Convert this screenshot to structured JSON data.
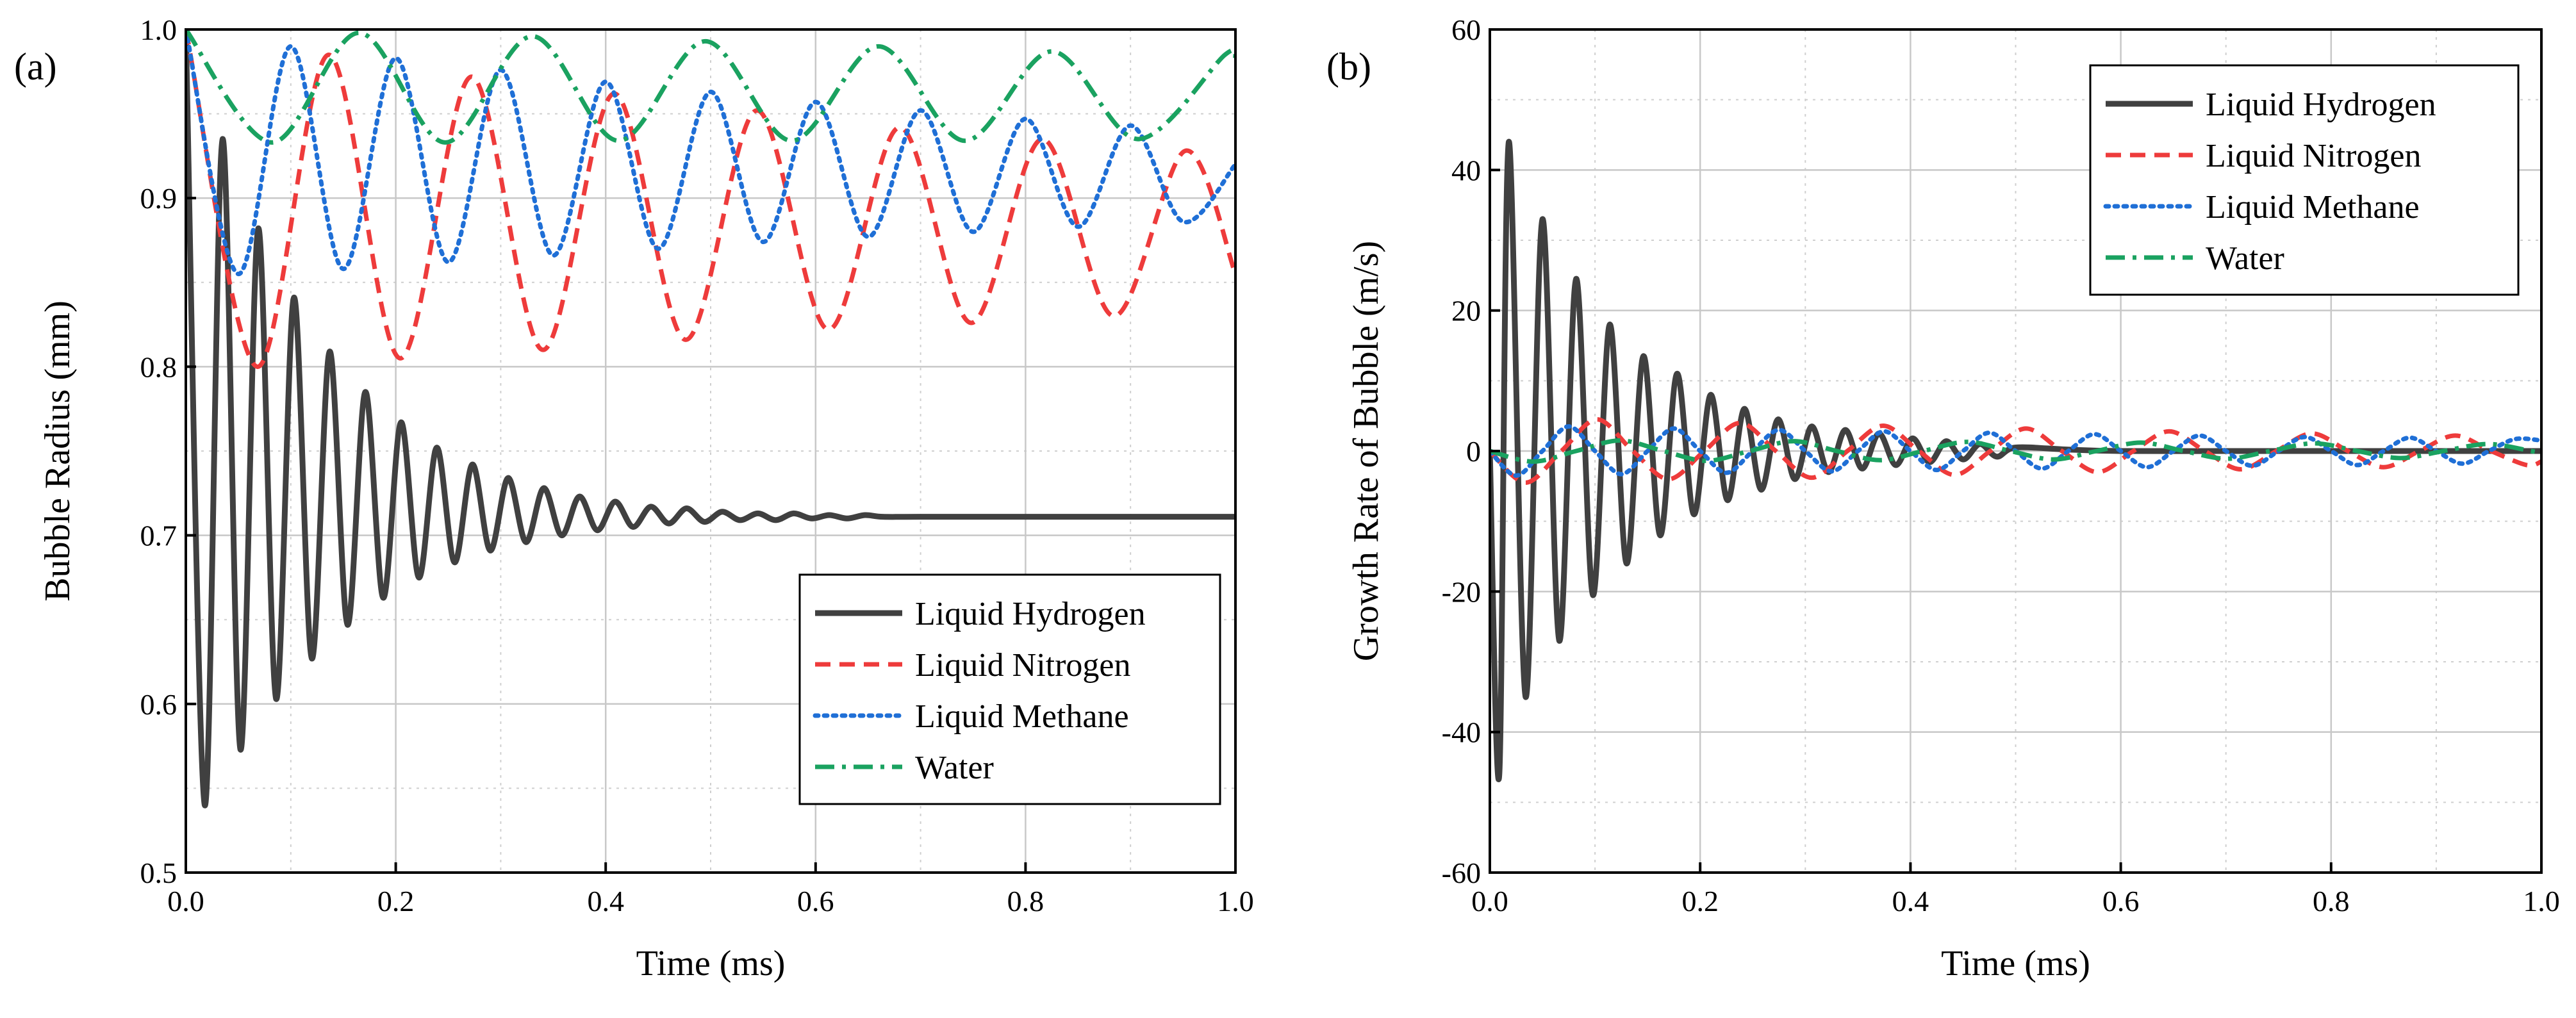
{
  "chart_data": [
    {
      "type": "line",
      "panel_label": "(a)",
      "xlabel": "Time (ms)",
      "ylabel": "Bubble Radius (mm)",
      "xlim": [
        0.0,
        1.0
      ],
      "ylim": [
        0.5,
        1.0
      ],
      "xticks": [
        "0.0",
        "0.2",
        "0.4",
        "0.6",
        "0.8",
        "1.0"
      ],
      "yticks": [
        "0.5",
        "0.6",
        "0.7",
        "0.8",
        "0.9",
        "1.0"
      ],
      "grid": true,
      "legend_position": "bottom-right",
      "series": [
        {
          "name": "Liquid Hydrogen",
          "color": "#404040",
          "dash": "solid",
          "x": [
            0,
            0.018,
            0.035,
            0.052,
            0.069,
            0.086,
            0.103,
            0.12,
            0.137,
            0.154,
            0.171,
            0.188,
            0.205,
            0.222,
            0.239,
            0.256,
            0.273,
            0.29,
            0.307,
            0.324,
            0.341,
            0.358,
            0.375,
            0.392,
            0.409,
            0.426,
            0.443,
            0.46,
            0.477,
            0.494,
            0.511,
            0.528,
            0.545,
            0.562,
            0.579,
            0.596,
            0.613,
            0.63,
            0.647,
            0.664,
            0.7,
            0.8,
            0.9,
            1.0
          ],
          "values": [
            1.0,
            0.54,
            0.935,
            0.573,
            0.882,
            0.603,
            0.841,
            0.627,
            0.809,
            0.647,
            0.785,
            0.663,
            0.767,
            0.675,
            0.752,
            0.684,
            0.742,
            0.691,
            0.734,
            0.696,
            0.728,
            0.7,
            0.723,
            0.703,
            0.72,
            0.705,
            0.717,
            0.707,
            0.716,
            0.708,
            0.714,
            0.709,
            0.713,
            0.709,
            0.713,
            0.71,
            0.712,
            0.71,
            0.712,
            0.711,
            0.711,
            0.711,
            0.711,
            0.711
          ]
        },
        {
          "name": "Liquid Nitrogen",
          "color": "#ee3b3b",
          "dash": "dashed",
          "x": [
            0,
            0.068,
            0.136,
            0.204,
            0.272,
            0.34,
            0.408,
            0.476,
            0.544,
            0.612,
            0.68,
            0.748,
            0.816,
            0.884,
            0.952,
            1.0
          ],
          "values": [
            1.0,
            0.8,
            0.985,
            0.805,
            0.972,
            0.81,
            0.962,
            0.816,
            0.952,
            0.822,
            0.942,
            0.826,
            0.935,
            0.83,
            0.928,
            0.855
          ]
        },
        {
          "name": "Liquid Methane",
          "color": "#1f6fd6",
          "dash": "dotted",
          "x": [
            0,
            0.05,
            0.1,
            0.15,
            0.2,
            0.25,
            0.3,
            0.35,
            0.4,
            0.45,
            0.5,
            0.55,
            0.6,
            0.65,
            0.7,
            0.75,
            0.8,
            0.85,
            0.9,
            0.95,
            1.0
          ],
          "values": [
            1.0,
            0.855,
            0.99,
            0.858,
            0.983,
            0.862,
            0.976,
            0.866,
            0.969,
            0.87,
            0.963,
            0.874,
            0.957,
            0.877,
            0.952,
            0.88,
            0.947,
            0.883,
            0.943,
            0.886,
            0.92
          ]
        },
        {
          "name": "Water",
          "color": "#1aa260",
          "dash": "dashdot",
          "x": [
            0,
            0.082,
            0.165,
            0.247,
            0.33,
            0.412,
            0.495,
            0.577,
            0.66,
            0.742,
            0.825,
            0.907,
            0.99,
            1.0
          ],
          "values": [
            1.0,
            0.933,
            0.998,
            0.933,
            0.996,
            0.934,
            0.993,
            0.934,
            0.99,
            0.934,
            0.987,
            0.935,
            0.985,
            0.982
          ]
        }
      ]
    },
    {
      "type": "line",
      "panel_label": "(b)",
      "xlabel": "Time (ms)",
      "ylabel": "Growth Rate of Bubble (m/s)",
      "xlim": [
        0.0,
        1.0
      ],
      "ylim": [
        -60,
        60
      ],
      "xticks": [
        "0.0",
        "0.2",
        "0.4",
        "0.6",
        "0.8",
        "1.0"
      ],
      "yticks": [
        "-60",
        "-40",
        "-20",
        "0",
        "20",
        "40",
        "60"
      ],
      "grid": true,
      "legend_position": "top-right",
      "series": [
        {
          "name": "Liquid Hydrogen",
          "color": "#404040",
          "dash": "solid",
          "x": [
            0,
            0.009,
            0.018,
            0.034,
            0.05,
            0.066,
            0.082,
            0.098,
            0.114,
            0.13,
            0.146,
            0.162,
            0.178,
            0.194,
            0.21,
            0.226,
            0.242,
            0.258,
            0.274,
            0.29,
            0.306,
            0.322,
            0.338,
            0.354,
            0.37,
            0.386,
            0.402,
            0.418,
            0.434,
            0.45,
            0.466,
            0.482,
            0.5,
            0.55,
            0.6,
            0.7,
            0.8,
            0.9,
            1.0
          ],
          "values": [
            0,
            -46,
            44,
            -35,
            33,
            -27,
            24.5,
            -20.5,
            18,
            -16,
            13.5,
            -12,
            11,
            -9,
            8,
            -7,
            6,
            -5.5,
            4.5,
            -4,
            3.5,
            -3,
            3,
            -2.5,
            2.5,
            -2,
            1.8,
            -1.6,
            1.4,
            -1.2,
            1.0,
            -0.8,
            0.5,
            0.2,
            0,
            0,
            0,
            0,
            0
          ]
        },
        {
          "name": "Liquid Nitrogen",
          "color": "#ee3b3b",
          "dash": "dashed",
          "x": [
            0,
            0.034,
            0.068,
            0.102,
            0.136,
            0.17,
            0.204,
            0.238,
            0.272,
            0.306,
            0.34,
            0.374,
            0.408,
            0.442,
            0.476,
            0.51,
            0.544,
            0.578,
            0.612,
            0.646,
            0.68,
            0.714,
            0.748,
            0.782,
            0.816,
            0.85,
            0.884,
            0.918,
            0.952,
            0.986,
            1.0
          ],
          "values": [
            0,
            -4.5,
            0,
            4.5,
            0,
            -4,
            0,
            4,
            0,
            -3.8,
            0,
            3.6,
            0,
            -3.4,
            0,
            3.2,
            0,
            -3.0,
            0,
            2.8,
            0,
            -2.6,
            0,
            2.5,
            0,
            -2.3,
            0,
            2.2,
            0,
            -2.0,
            -1.5
          ]
        },
        {
          "name": "Liquid Methane",
          "color": "#1f6fd6",
          "dash": "dotted",
          "x": [
            0,
            0.025,
            0.05,
            0.075,
            0.1,
            0.125,
            0.15,
            0.175,
            0.2,
            0.225,
            0.25,
            0.275,
            0.3,
            0.325,
            0.35,
            0.375,
            0.4,
            0.425,
            0.45,
            0.475,
            0.5,
            0.525,
            0.55,
            0.575,
            0.6,
            0.625,
            0.65,
            0.675,
            0.7,
            0.725,
            0.75,
            0.775,
            0.8,
            0.825,
            0.85,
            0.875,
            0.9,
            0.925,
            0.95,
            0.975,
            1.0
          ],
          "values": [
            0,
            -3.5,
            0,
            3.5,
            0,
            -3.3,
            0,
            3.2,
            0,
            -3.1,
            0,
            3.0,
            0,
            -2.9,
            0,
            2.8,
            0,
            -2.7,
            0,
            2.6,
            0,
            -2.5,
            0,
            2.4,
            0,
            -2.3,
            0,
            2.2,
            0,
            -2.1,
            0,
            2.0,
            0,
            -2.0,
            0,
            1.9,
            0,
            -1.8,
            0,
            1.7,
            1.5
          ]
        },
        {
          "name": "Water",
          "color": "#1aa260",
          "dash": "dashdot",
          "x": [
            0,
            0.041,
            0.082,
            0.124,
            0.165,
            0.206,
            0.247,
            0.289,
            0.33,
            0.371,
            0.412,
            0.454,
            0.495,
            0.536,
            0.577,
            0.619,
            0.66,
            0.701,
            0.742,
            0.784,
            0.825,
            0.866,
            0.907,
            0.949,
            0.99,
            1.0
          ],
          "values": [
            0,
            -1.5,
            0,
            1.5,
            0,
            -1.4,
            0,
            1.4,
            0,
            -1.3,
            0,
            1.3,
            0,
            -1.2,
            0,
            1.2,
            0,
            -1.1,
            0,
            1.1,
            0,
            -1.0,
            0,
            1.0,
            0,
            -0.3
          ]
        }
      ]
    }
  ]
}
